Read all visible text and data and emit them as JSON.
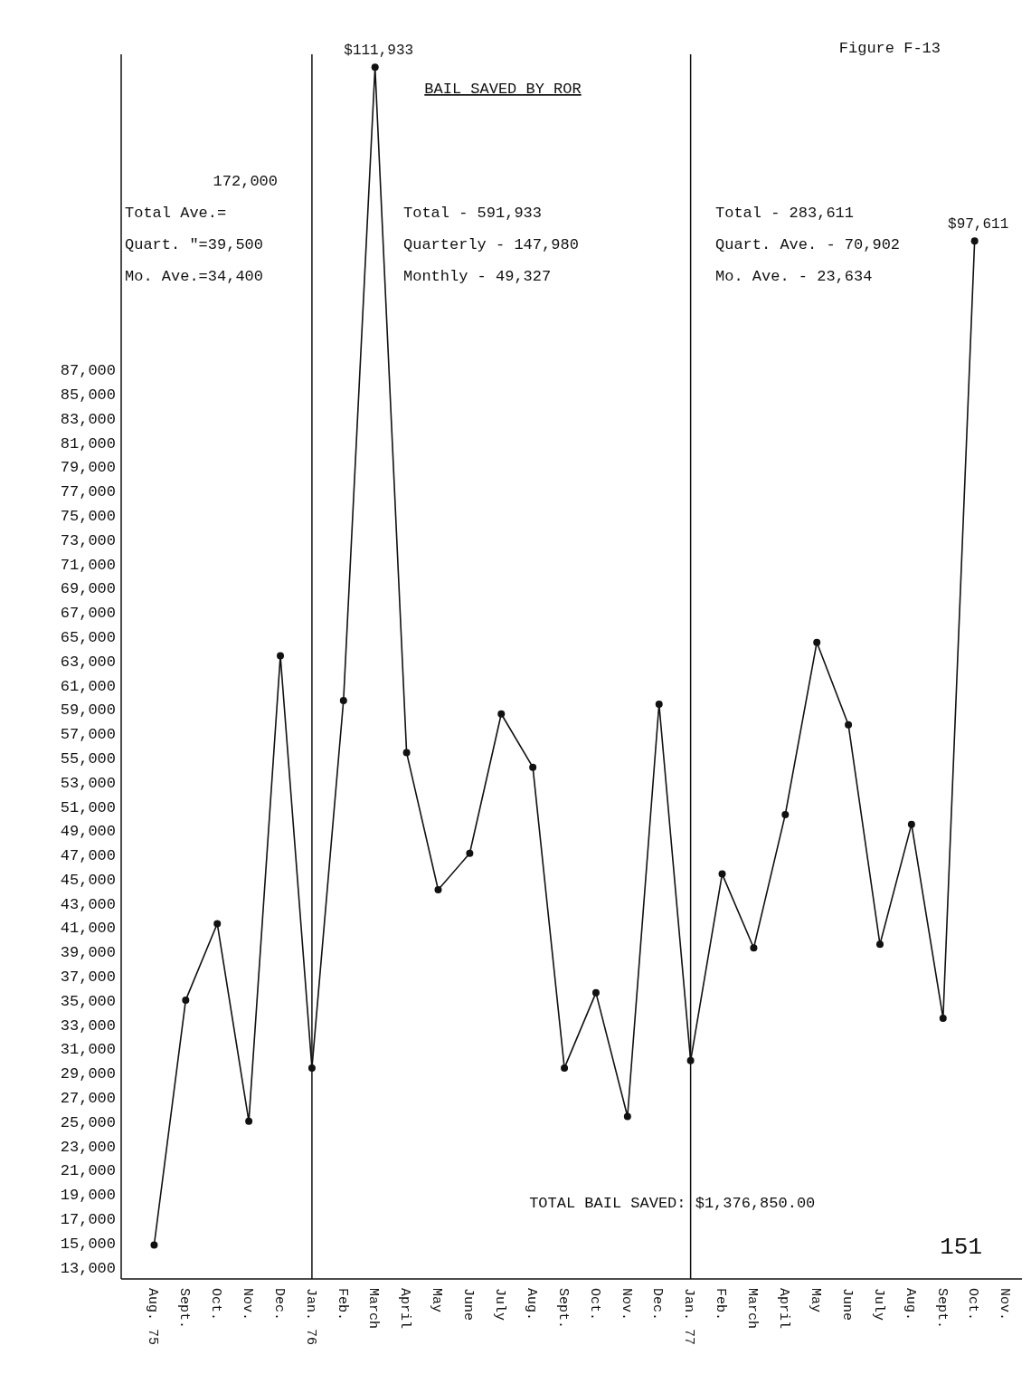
{
  "chart_data": {
    "type": "line",
    "title": "BAIL SAVED BY ROR",
    "categories": [
      "Aug. 75",
      "Sept.",
      "Oct.",
      "Nov.",
      "Dec.",
      "Jan. 76",
      "Feb.",
      "March",
      "April",
      "May",
      "June",
      "July",
      "Aug.",
      "Sept.",
      "Oct.",
      "Nov.",
      "Dec.",
      "Jan. 77",
      "Feb.",
      "March",
      "April",
      "May",
      "June",
      "July",
      "Aug.",
      "Sept.",
      "Oct.",
      "Nov."
    ],
    "series": [
      {
        "color": "#111111",
        "values": [
          14800,
          35000,
          41300,
          25000,
          63400,
          29400,
          59700,
          111933,
          55400,
          44100,
          47100,
          58600,
          54200,
          29400,
          35600,
          25400,
          59400,
          30000,
          45400,
          39300,
          50300,
          64500,
          57700,
          39600,
          49500,
          33500,
          97611,
          null
        ],
        "value_labels": [
          null,
          null,
          null,
          null,
          null,
          null,
          null,
          "$111,933",
          null,
          null,
          null,
          null,
          null,
          null,
          null,
          null,
          null,
          null,
          null,
          null,
          null,
          null,
          null,
          null,
          null,
          null,
          "$97,611",
          null
        ]
      }
    ],
    "ylim": [
      12000,
      113000
    ],
    "yticks": [
      {
        "value": 13000,
        "label": "13,000"
      },
      {
        "value": 15000,
        "label": "15,000"
      },
      {
        "value": 17000,
        "label": "17,000"
      },
      {
        "value": 19000,
        "label": "19,000"
      },
      {
        "value": 21000,
        "label": "21,000"
      },
      {
        "value": 23000,
        "label": "23,000"
      },
      {
        "value": 25000,
        "label": "25,000"
      },
      {
        "value": 27000,
        "label": "27,000"
      },
      {
        "value": 29000,
        "label": "29,000"
      },
      {
        "value": 31000,
        "label": "31,000"
      },
      {
        "value": 33000,
        "label": "33,000"
      },
      {
        "value": 35000,
        "label": "35,000"
      },
      {
        "value": 37000,
        "label": "37,000"
      },
      {
        "value": 39000,
        "label": "39,000"
      },
      {
        "value": 41000,
        "label": "41,000"
      },
      {
        "value": 43000,
        "label": "43,000"
      },
      {
        "value": 45000,
        "label": "45,000"
      },
      {
        "value": 47000,
        "label": "47,000"
      },
      {
        "value": 49000,
        "label": "49,000"
      },
      {
        "value": 51000,
        "label": "51,000"
      },
      {
        "value": 53000,
        "label": "53,000"
      },
      {
        "value": 55000,
        "label": "55,000"
      },
      {
        "value": 57000,
        "label": "57,000"
      },
      {
        "value": 59000,
        "label": "59,000"
      },
      {
        "value": 61000,
        "label": "61,000"
      },
      {
        "value": 63000,
        "label": "63,000"
      },
      {
        "value": 65000,
        "label": "65,000"
      },
      {
        "value": 67000,
        "label": "67,000"
      },
      {
        "value": 69000,
        "label": "69,000"
      },
      {
        "value": 71000,
        "label": "71,000"
      },
      {
        "value": 73000,
        "label": "73,000"
      },
      {
        "value": 75000,
        "label": "75,000"
      },
      {
        "value": 77000,
        "label": "77,000"
      },
      {
        "value": 79000,
        "label": "79,000"
      },
      {
        "value": 81000,
        "label": "81,000"
      },
      {
        "value": 83000,
        "label": "83,000"
      },
      {
        "value": 85000,
        "label": "85,000"
      },
      {
        "value": 87000,
        "label": "87,000"
      }
    ],
    "ref_lines": [
      {
        "axis": "x",
        "value": "Jan. 76"
      },
      {
        "axis": "x",
        "value": "Jan. 77"
      }
    ],
    "annotations": [
      "172,000",
      "Total Ave.=",
      "Quart. \"=39,500",
      "Mo. Ave.=34,400",
      "Total - 591,933",
      "Quarterly - 147,980",
      "Monthly - 49,327",
      "Total - 283,611",
      "Quart. Ave. - 70,902",
      "Mo. Ave. - 23,634",
      "TOTAL BAIL SAVED: $1,376,850.00",
      "Figure F-13",
      "151"
    ],
    "marker": "circle",
    "line_style": "solid",
    "grid": false
  }
}
